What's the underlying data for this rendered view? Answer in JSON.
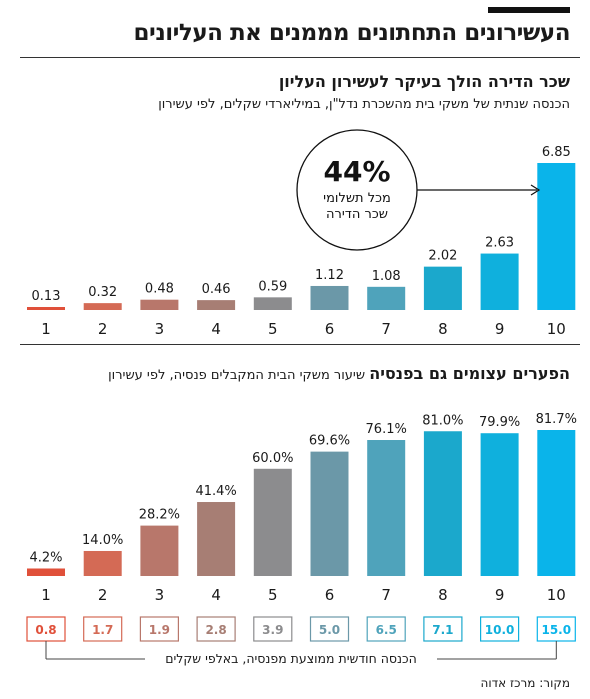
{
  "title": "העשירונים התחתונים מממנים את העליונים",
  "source": "מקור: מרכז אדוה",
  "palette": [
    "#e0503a",
    "#d46a55",
    "#b8776b",
    "#a77e74",
    "#8c8c8e",
    "#6b98a8",
    "#4fa3bb",
    "#1ba8cc",
    "#0fb0dd",
    "#0ab4ea"
  ],
  "chart1": {
    "title": "שכר הדירה הולך בעיקר לעשירון העליון",
    "subtitle": "הכנסה שנתית של משקי בית מהשכרת נדל\"ן, במיליארדי שקלים, לפי עשירון",
    "annotation": {
      "big": "44%",
      "line1": "מכל תשלומי",
      "line2": "שכר הדירה"
    }
  },
  "chart2": {
    "title": "הפערים עצומים גם בפנסיה",
    "subtitle": "שיעור משקי הבית המקבלים פנסיה, לפי עשירון",
    "pension_caption": "הכנסה חודשית ממוצעת מפנסיה, באלפי שקלים"
  },
  "chart_data": [
    {
      "type": "bar",
      "categories": [
        "1",
        "2",
        "3",
        "4",
        "5",
        "6",
        "7",
        "8",
        "9",
        "10"
      ],
      "values": [
        0.13,
        0.32,
        0.48,
        0.46,
        0.59,
        1.12,
        1.08,
        2.02,
        2.63,
        6.85
      ],
      "value_labels": [
        "0.13",
        "0.32",
        "0.48",
        "0.46",
        "0.59",
        "1.12",
        "1.08",
        "2.02",
        "2.63",
        "6.85"
      ],
      "title": "שכר הדירה הולך בעיקר לעשירון העליון",
      "ylim": [
        0,
        6.85
      ],
      "grid": false
    },
    {
      "type": "bar",
      "categories": [
        "1",
        "2",
        "3",
        "4",
        "5",
        "6",
        "7",
        "8",
        "9",
        "10"
      ],
      "values": [
        4.2,
        14.0,
        28.2,
        41.4,
        60.0,
        69.6,
        76.1,
        81.0,
        79.9,
        81.7
      ],
      "value_labels": [
        "4.2%",
        "14.0%",
        "28.2%",
        "41.4%",
        "60.0%",
        "69.6%",
        "76.1%",
        "81.0%",
        "79.9%",
        "81.7%"
      ],
      "title": "הפערים עצומים גם בפנסיה",
      "ylim": [
        0,
        81.7
      ],
      "grid": false,
      "pension_monthly_thousands": [
        "0.8",
        "1.7",
        "1.9",
        "2.8",
        "3.9",
        "5.0",
        "6.5",
        "7.1",
        "10.0",
        "15.0"
      ]
    }
  ]
}
